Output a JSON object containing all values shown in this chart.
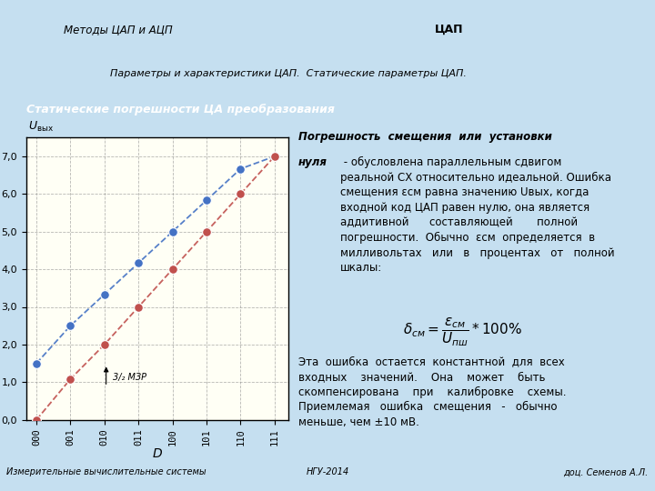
{
  "bg_color": "#c5dff0",
  "chart_bg": "#fffff5",
  "yellow_color": "#ffff00",
  "green_color": "#7dc832",
  "blue_box_color": "#4a9fd4",
  "yellow_box1_text": "Методы ЦАП и АЦП",
  "yellow_box2_text": "ЦАП",
  "green_box_text": "Параметры и характеристики ЦАП.  Статические параметры ЦАП.",
  "blue_box_text": "Статические погрешности ЦА преобразования",
  "x_labels": [
    "000",
    "001",
    "010",
    "011",
    "100",
    "101",
    "110",
    "111"
  ],
  "x_vals": [
    0,
    1,
    2,
    3,
    4,
    5,
    6,
    7
  ],
  "y_ideal": [
    1.5,
    2.5,
    3.333,
    4.167,
    5.0,
    5.833,
    6.667,
    7.0
  ],
  "y_real": [
    0.0,
    1.083,
    2.0,
    3.0,
    4.0,
    5.0,
    6.0,
    7.0
  ],
  "ideal_color": "#4472c4",
  "real_color": "#c0504d",
  "xlabel": "D",
  "ytick_labels": [
    "0,0",
    "1,0",
    "2,0",
    "3,0",
    "4,0",
    "5,0",
    "6,0",
    "7,0"
  ],
  "yticks": [
    0.0,
    1.0,
    2.0,
    3.0,
    4.0,
    5.0,
    6.0,
    7.0
  ],
  "footer_left": "Измерительные вычислительные системы",
  "footer_center": "НГУ-2014",
  "footer_right": "доц. Семенов А.Л."
}
